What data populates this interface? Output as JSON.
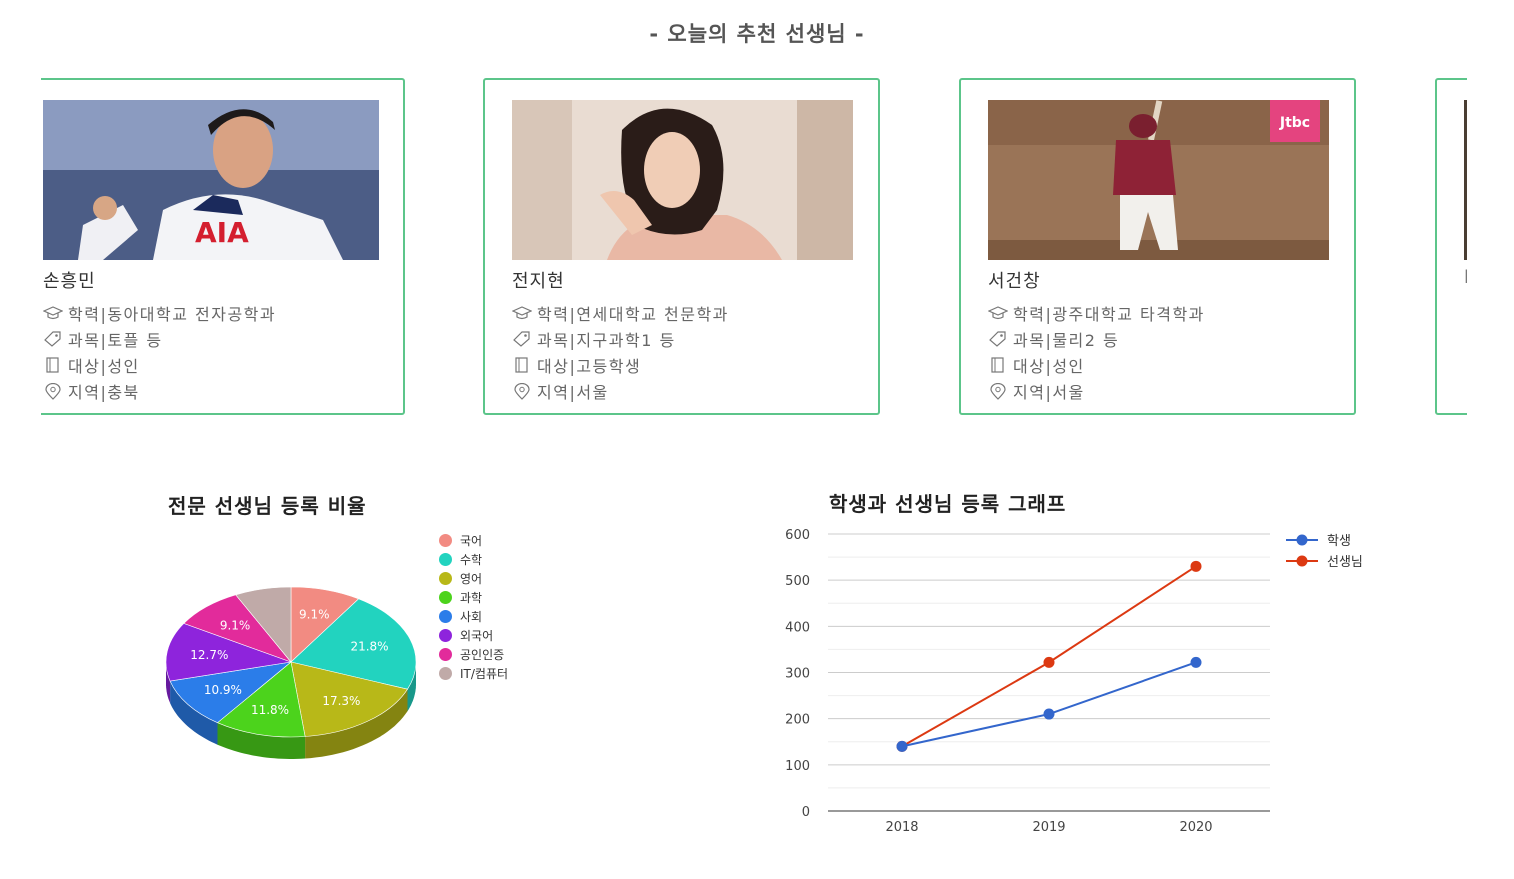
{
  "section": {
    "title": "- 오늘의 추천 선생님 -"
  },
  "teachers": [
    {
      "name": "손흥민",
      "education": "학력|동아대학교 전자공학과",
      "subject": "과목|토플 등",
      "target": "대상|성인",
      "region": "지역|충북"
    },
    {
      "name": "전지현",
      "education": "학력|연세대학교 천문학과",
      "subject": "과목|지구과학1 등",
      "target": "대상|고등학생",
      "region": "지역|서울"
    },
    {
      "name": "서건창",
      "education": "학력|광주대학교 타격학과",
      "subject": "과목|물리2 등",
      "target": "대상|성인",
      "region": "지역|서울"
    }
  ],
  "partial_card_text": "l",
  "broadcaster_logo": "Jtbc",
  "pie_chart": {
    "chart_data": {
      "type": "pie",
      "title": "전문 선생님 등록 비율",
      "labels": [
        "국어",
        "수학",
        "영어",
        "과학",
        "사회",
        "외국어",
        "공인인증",
        "IT/컴퓨터"
      ],
      "values": [
        9.1,
        21.8,
        17.3,
        11.8,
        10.9,
        12.7,
        9.1,
        7.3
      ],
      "value_labels": [
        "9.1%",
        "21.8%",
        "17.3%",
        "11.8%",
        "10.9%",
        "12.7%",
        "9.1%",
        ""
      ],
      "colors": [
        "#f28b82",
        "#22d3bf",
        "#b8b818",
        "#4cd31c",
        "#2b7de9",
        "#8e24dc",
        "#e22b9b",
        "#c0aaa8"
      ],
      "legend": "right"
    }
  },
  "line_chart": {
    "chart_data": {
      "type": "line",
      "title": "학생과 선생님 등록 그래프",
      "categories": [
        "2018",
        "2019",
        "2020"
      ],
      "series": [
        {
          "name": "학생",
          "values": [
            140,
            210,
            322
          ],
          "color": "#3366cc"
        },
        {
          "name": "선생님",
          "values": [
            140,
            322,
            530
          ],
          "color": "#dc3912"
        }
      ],
      "ylim": [
        0,
        600
      ],
      "yticks": [
        "0",
        "100",
        "200",
        "300",
        "400",
        "500",
        "600"
      ],
      "grid": true,
      "legend": "right"
    }
  }
}
